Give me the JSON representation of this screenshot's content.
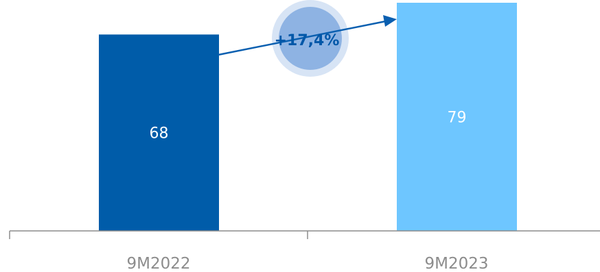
{
  "chart_data": {
    "type": "bar",
    "categories": [
      "9M2022",
      "9M2023"
    ],
    "values": [
      68,
      79
    ],
    "value_labels": [
      "68",
      "79"
    ],
    "colors": [
      "#005ca9",
      "#6ec6ff"
    ],
    "ylim": [
      0,
      79
    ],
    "grid": false,
    "legend": "none",
    "annotations": [
      {
        "text": "+17,4%",
        "from_category": "9M2022",
        "to_category": "9M2023",
        "arrow_color": "#0a5fb0",
        "bubble_outer_color": "#d7e4f5",
        "bubble_inner_color": "#8eb3e3"
      }
    ],
    "axis_color": "#8c8c8c",
    "value_label_color": "#ffffff",
    "category_label_color": "#8c8c8c"
  }
}
